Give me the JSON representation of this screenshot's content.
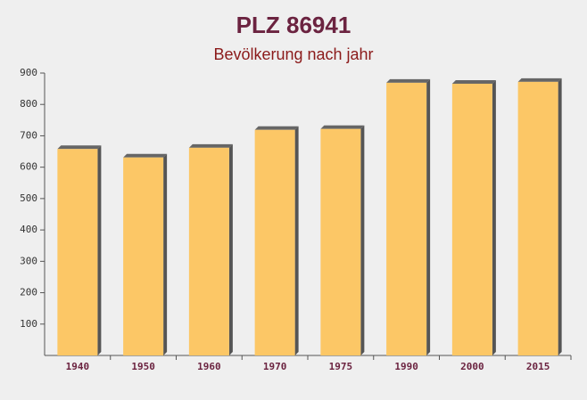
{
  "chart_data": {
    "type": "bar",
    "title": "PLZ 86941",
    "subtitle": "Bevölkerung nach jahr",
    "categories": [
      "1940",
      "1950",
      "1960",
      "1970",
      "1975",
      "1990",
      "2000",
      "2015"
    ],
    "values": [
      658,
      631,
      662,
      719,
      722,
      869,
      866,
      872
    ],
    "color": "#fcc766",
    "ylim": [
      0,
      900
    ],
    "yticks": [
      100,
      200,
      300,
      400,
      500,
      600,
      700,
      800,
      900
    ],
    "grid": false
  }
}
